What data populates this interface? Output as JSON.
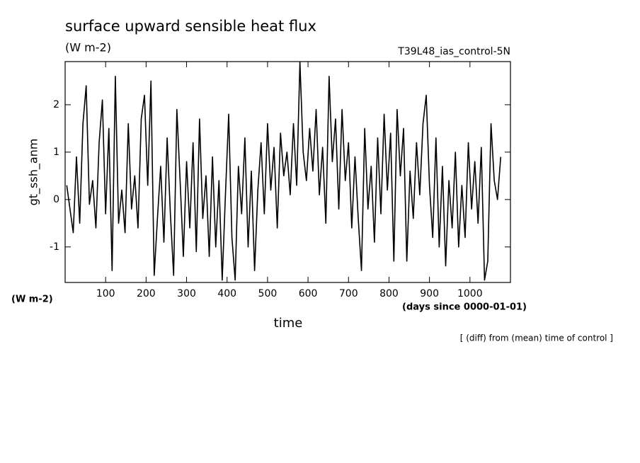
{
  "chart_data": {
    "type": "line",
    "title": "surface upward sensible heat flux",
    "subtitle": "(W m-2)",
    "annotation": "T39L48_ias_control-5N",
    "ylabel": "gt_ssh_anm",
    "yunit": "(W m-2)",
    "xlabel": "time",
    "xunit": "(days since 0000-01-01)",
    "note": "[ (diff) from (mean) time of control ]",
    "xlim": [
      0,
      1100
    ],
    "ylim": [
      -1.75,
      2.91
    ],
    "xticks": [
      100,
      200,
      300,
      400,
      500,
      600,
      700,
      800,
      900,
      1000
    ],
    "yticks": [
      -1,
      0,
      1,
      2
    ],
    "x": [
      4,
      12,
      20,
      28,
      36,
      44,
      52,
      60,
      68,
      76,
      84,
      92,
      100,
      108,
      116,
      124,
      132,
      140,
      148,
      156,
      164,
      172,
      180,
      188,
      196,
      204,
      212,
      220,
      228,
      236,
      244,
      252,
      260,
      268,
      276,
      284,
      292,
      300,
      308,
      316,
      324,
      332,
      340,
      348,
      356,
      364,
      372,
      380,
      388,
      396,
      404,
      412,
      420,
      428,
      436,
      444,
      452,
      460,
      468,
      476,
      484,
      492,
      500,
      508,
      516,
      524,
      532,
      540,
      548,
      556,
      564,
      572,
      580,
      588,
      596,
      604,
      612,
      620,
      628,
      636,
      644,
      652,
      660,
      668,
      676,
      684,
      692,
      700,
      708,
      716,
      724,
      732,
      740,
      748,
      756,
      764,
      772,
      780,
      788,
      796,
      804,
      812,
      820,
      828,
      836,
      844,
      852,
      860,
      868,
      876,
      884,
      892,
      900,
      908,
      916,
      924,
      932,
      940,
      948,
      956,
      964,
      972,
      980,
      988,
      996,
      1004,
      1012,
      1020,
      1028,
      1036,
      1044,
      1052,
      1060,
      1068,
      1076
    ],
    "series": [
      {
        "color": "#000000",
        "values": [
          0.3,
          -0.2,
          -0.7,
          0.9,
          -0.5,
          1.6,
          2.4,
          -0.1,
          0.4,
          -0.6,
          1.2,
          2.1,
          -0.3,
          1.5,
          -1.5,
          2.6,
          -0.5,
          0.2,
          -0.7,
          1.6,
          -0.2,
          0.5,
          -0.6,
          1.7,
          2.2,
          0.3,
          2.5,
          -1.6,
          -0.4,
          0.7,
          -0.9,
          1.3,
          -0.3,
          -1.6,
          1.9,
          0.4,
          -1.2,
          0.8,
          -0.6,
          1.2,
          -1.1,
          1.7,
          -0.4,
          0.5,
          -1.2,
          0.9,
          -1.0,
          0.4,
          -1.7,
          0.1,
          1.8,
          -0.8,
          -1.7,
          0.7,
          -0.3,
          1.3,
          -1.0,
          0.6,
          -1.5,
          0.2,
          1.2,
          -0.3,
          1.6,
          0.2,
          1.1,
          -0.6,
          1.4,
          0.5,
          1.0,
          0.1,
          1.6,
          0.3,
          2.9,
          1.0,
          0.4,
          1.5,
          0.6,
          1.9,
          0.1,
          1.1,
          -0.5,
          2.6,
          0.8,
          1.7,
          -0.2,
          1.9,
          0.4,
          1.2,
          -0.6,
          0.9,
          -0.4,
          -1.5,
          1.5,
          -0.2,
          0.7,
          -0.9,
          1.3,
          -0.3,
          1.8,
          0.2,
          1.4,
          -1.3,
          1.9,
          0.5,
          1.5,
          -1.3,
          0.6,
          -0.4,
          1.2,
          0.1,
          1.6,
          2.2,
          0.3,
          -0.8,
          1.3,
          -1.0,
          0.7,
          -1.4,
          0.4,
          -0.6,
          1.0,
          -1.0,
          0.3,
          -0.8,
          1.2,
          -0.2,
          0.8,
          -0.5,
          1.1,
          -1.7,
          -1.3,
          1.6,
          0.4,
          0.0,
          0.9
        ]
      }
    ]
  }
}
